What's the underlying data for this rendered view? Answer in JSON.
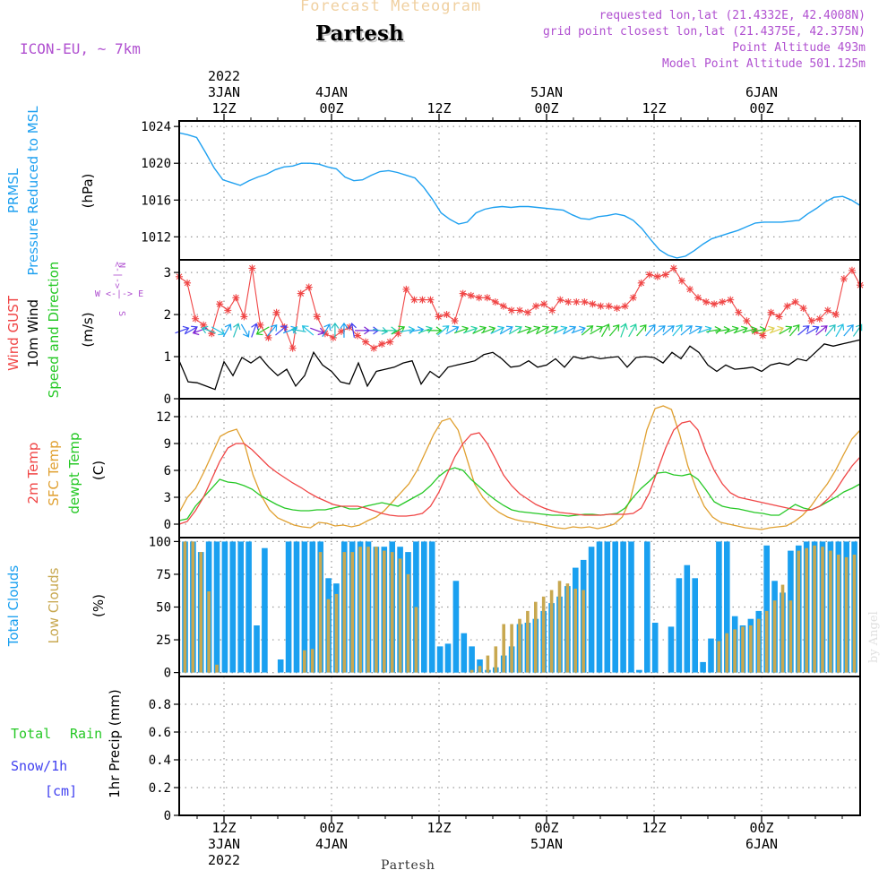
{
  "header": {
    "super_title": "Forecast Meteogram",
    "location": "Partesh",
    "model": "ICON-EU, ~ 7km",
    "requested": "requested lon,lat (21.4332E, 42.4008N)",
    "grid_point": "grid point closest lon,lat (21.4375E, 42.375N)",
    "point_altitude": "Point Altitude 493m",
    "model_altitude": "Model Point Altitude 501.125m",
    "footer_location": "Partesh",
    "watermark": "by Angel",
    "compass": {
      "n": "N",
      "s": "S",
      "w": "W",
      "e": "E",
      "arrow": "<-|->"
    }
  },
  "colors": {
    "pressure": "#1ea0f0",
    "gust": "#f04545",
    "wind": "#000000",
    "temp2m": "#f04545",
    "sfc": "#e0a030",
    "dewpt": "#25c825",
    "cloud_total": "#1aa0f0",
    "cloud_low": "#c8a850",
    "rain": "#25c825",
    "snow": "#4040f0",
    "header_purple": "#b050d0",
    "header_tan": "#f0d0a0"
  },
  "chart_data": {
    "type": "line",
    "time_axis": {
      "top_ticks": [
        {
          "hour": 12,
          "lines": [
            "2022",
            "3JAN",
            "12Z"
          ]
        },
        {
          "hour": 24,
          "lines": [
            "4JAN",
            "00Z"
          ]
        },
        {
          "hour": 36,
          "lines": [
            "12Z"
          ]
        },
        {
          "hour": 48,
          "lines": [
            "5JAN",
            "00Z"
          ]
        },
        {
          "hour": 60,
          "lines": [
            "12Z"
          ]
        },
        {
          "hour": 72,
          "lines": [
            "6JAN",
            "00Z"
          ]
        }
      ],
      "bottom_ticks": [
        {
          "hour": 12,
          "lines": [
            "12Z",
            "3JAN",
            "2022"
          ]
        },
        {
          "hour": 24,
          "lines": [
            "00Z",
            "4JAN"
          ]
        },
        {
          "hour": 36,
          "lines": [
            "12Z"
          ]
        },
        {
          "hour": 48,
          "lines": [
            "00Z",
            "5JAN"
          ]
        },
        {
          "hour": 60,
          "lines": [
            "12Z"
          ]
        },
        {
          "hour": 72,
          "lines": [
            "00Z",
            "6JAN"
          ]
        }
      ],
      "start_hour": 7,
      "end_hour": 83
    },
    "panels": [
      {
        "id": "pressure",
        "labels": [
          "PRMSL",
          "Pressure Reduced to MSL"
        ],
        "unit": "(hPa)",
        "yrange": [
          1009.5,
          1024.6
        ],
        "yticks": [
          1012,
          1016,
          1020,
          1024
        ],
        "series": [
          {
            "name": "PRMSL",
            "color": "#1ea0f0",
            "values": [
              1023.3,
              1023.1,
              1022.8,
              1021.2,
              1019.5,
              1018.2,
              1017.9,
              1017.6,
              1018.1,
              1018.5,
              1018.8,
              1019.3,
              1019.6,
              1019.7,
              1020.0,
              1020.0,
              1019.9,
              1019.6,
              1019.4,
              1018.5,
              1018.1,
              1018.2,
              1018.7,
              1019.1,
              1019.2,
              1019.0,
              1018.7,
              1018.4,
              1017.4,
              1016.1,
              1014.6,
              1013.9,
              1013.4,
              1013.6,
              1014.6,
              1015.0,
              1015.2,
              1015.3,
              1015.2,
              1015.3,
              1015.3,
              1015.2,
              1015.1,
              1015.0,
              1014.9,
              1014.4,
              1014.0,
              1013.9,
              1014.2,
              1014.3,
              1014.5,
              1014.3,
              1013.8,
              1012.9,
              1011.7,
              1010.6,
              1010.0,
              1009.7,
              1009.9,
              1010.5,
              1011.2,
              1011.8,
              1012.1,
              1012.4,
              1012.7,
              1013.1,
              1013.5,
              1013.6,
              1013.6,
              1013.6,
              1013.7,
              1013.8,
              1014.5,
              1015.1,
              1015.8,
              1016.3,
              1016.4,
              1016.0,
              1015.4
            ]
          }
        ]
      },
      {
        "id": "wind",
        "labels_red": "Wind GUST",
        "labels_black": "10m Wind",
        "labels_green": "Speed and Direction",
        "unit": "(m/s)",
        "yrange": [
          0,
          3.3
        ],
        "yticks": [
          0,
          1,
          2,
          3
        ],
        "gust": [
          2.9,
          2.75,
          1.9,
          1.75,
          1.55,
          2.25,
          2.1,
          2.4,
          1.95,
          3.1,
          1.75,
          1.45,
          2.05,
          1.7,
          1.2,
          2.5,
          2.65,
          1.95,
          1.55,
          1.45,
          1.6,
          1.7,
          1.5,
          1.35,
          1.2,
          1.3,
          1.35,
          1.55,
          2.6,
          2.35,
          2.35,
          2.35,
          1.95,
          2.0,
          1.85,
          2.5,
          2.45,
          2.4,
          2.4,
          2.3,
          2.2,
          2.1,
          2.1,
          2.05,
          2.2,
          2.25,
          2.1,
          2.35,
          2.3,
          2.3,
          2.3,
          2.25,
          2.2,
          2.2,
          2.15,
          2.2,
          2.4,
          2.75,
          2.95,
          2.9,
          2.95,
          3.1,
          2.8,
          2.6,
          2.4,
          2.3,
          2.25,
          2.3,
          2.35,
          2.05,
          1.85,
          1.6,
          1.5,
          2.05,
          1.95,
          2.2,
          2.3,
          2.15,
          1.85,
          1.9,
          2.1,
          2.0,
          2.85,
          3.05,
          2.7
        ],
        "wind": [
          0.9,
          0.4,
          0.38,
          0.3,
          0.22,
          0.88,
          0.55,
          0.98,
          0.85,
          1.0,
          0.75,
          0.55,
          0.7,
          0.3,
          0.55,
          1.1,
          0.8,
          0.65,
          0.4,
          0.35,
          0.85,
          0.3,
          0.65,
          0.7,
          0.75,
          0.85,
          0.9,
          0.35,
          0.65,
          0.5,
          0.75,
          0.8,
          0.85,
          0.9,
          1.05,
          1.1,
          0.95,
          0.75,
          0.78,
          0.9,
          0.75,
          0.8,
          0.95,
          0.75,
          1.0,
          0.95,
          1.0,
          0.95,
          0.98,
          1.0,
          0.75,
          0.98,
          1.0,
          0.98,
          0.85,
          1.1,
          0.95,
          1.25,
          1.1,
          0.8,
          0.65,
          0.8,
          0.7,
          0.72,
          0.75,
          0.65,
          0.8,
          0.85,
          0.8,
          0.95,
          0.9,
          1.1,
          1.3,
          1.25,
          1.3,
          1.35,
          1.4
        ],
        "arrow_dirs": [
          250,
          240,
          70,
          110,
          300,
          210,
          200,
          330,
          200,
          60,
          220,
          230,
          250,
          100,
          130,
          290,
          210,
          180,
          180,
          170,
          270,
          270,
          280,
          270,
          240,
          260,
          260,
          250,
          270,
          230,
          240,
          250,
          250,
          245,
          250,
          245,
          240,
          240,
          250,
          245,
          240,
          240,
          245,
          240,
          250,
          230,
          240,
          210,
          220,
          200,
          210,
          220,
          220,
          230,
          230,
          220,
          230,
          240,
          250,
          260,
          260,
          250,
          250,
          255,
          260,
          250,
          250,
          240,
          220,
          230,
          240,
          230,
          220,
          210,
          220,
          215
        ],
        "arrow_colors": [
          "#4040f0",
          "#4040f0",
          "#8020d0",
          "#25c0c0",
          "#20c0e0",
          "#1aa0f0",
          "#25c0c0",
          "#1aa0f0",
          "#4040f0",
          "#25c825",
          "#1aa0f0",
          "#4040f0",
          "#1aa0f0",
          "#25c0c0",
          "#20c0e0",
          "#8020d0",
          "#1aa0f0",
          "#25c0c0",
          "#1aa0f0",
          "#4040f0",
          "#8020d0",
          "#4040f0",
          "#25c0c0",
          "#20d0a0",
          "#25c825",
          "#20c0e0",
          "#1aa0f0",
          "#20d0a0",
          "#25c825",
          "#20c0e0",
          "#1aa0f0",
          "#25c825",
          "#20d0a0",
          "#25c825",
          "#25c825",
          "#20c0e0",
          "#1aa0f0",
          "#20d0a0",
          "#25c825",
          "#25c825",
          "#25c825",
          "#25c825",
          "#20c0e0",
          "#1aa0f0",
          "#1aa0f0",
          "#25c825",
          "#25c825",
          "#25c825",
          "#25c825",
          "#20d0a0",
          "#20d0a0",
          "#25c825",
          "#1aa0f0",
          "#1aa0f0",
          "#1aa0f0",
          "#20c0e0",
          "#1aa0f0",
          "#1aa0f0",
          "#20c0e0",
          "#25c825",
          "#25c825",
          "#25c825",
          "#25c825",
          "#25c825",
          "#25c825",
          "#e0d050",
          "#e0d050",
          "#25c825",
          "#25c825"
        ]
      },
      {
        "id": "temperature",
        "label_temp": "2m Temp",
        "label_sfc": "SFC Temp",
        "label_dew": "dewpt Temp",
        "unit": "(C)",
        "yrange": [
          -1.5,
          14
        ],
        "yticks": [
          0,
          3,
          6,
          9,
          12
        ],
        "series": [
          {
            "name": "2m Temp",
            "color": "#f04545",
            "values": [
              0.0,
              0.3,
              1.5,
              3.0,
              5.0,
              7.0,
              8.5,
              9.0,
              9.0,
              8.3,
              7.4,
              6.5,
              5.8,
              5.2,
              4.6,
              4.1,
              3.5,
              3.0,
              2.6,
              2.2,
              2.0,
              2.0,
              2.0,
              1.8,
              1.5,
              1.2,
              1.0,
              0.9,
              0.9,
              1.0,
              1.2,
              2.0,
              3.5,
              5.5,
              7.5,
              9.0,
              10.0,
              10.2,
              9.0,
              7.3,
              5.5,
              4.3,
              3.4,
              2.8,
              2.2,
              1.8,
              1.5,
              1.3,
              1.2,
              1.1,
              1.0,
              1.0,
              1.0,
              1.1,
              1.1,
              1.1,
              1.2,
              1.8,
              3.5,
              6.0,
              8.5,
              10.5,
              11.3,
              11.5,
              10.5,
              8.0,
              6.0,
              4.5,
              3.5,
              3.0,
              2.8,
              2.6,
              2.4,
              2.2,
              2.0,
              1.8,
              1.6,
              1.5,
              1.6,
              2.0,
              2.8,
              3.8,
              5.2,
              6.5,
              7.5
            ]
          },
          {
            "name": "SFC Temp",
            "color": "#e0a030",
            "values": [
              1.3,
              3.0,
              4.0,
              5.8,
              7.8,
              9.8,
              10.3,
              10.6,
              8.8,
              5.5,
              3.2,
              1.6,
              0.7,
              0.3,
              -0.1,
              -0.3,
              -0.4,
              0.2,
              0.1,
              -0.2,
              -0.1,
              -0.3,
              -0.1,
              0.4,
              0.8,
              1.5,
              2.5,
              3.5,
              4.5,
              6.0,
              8.0,
              10.0,
              11.5,
              11.8,
              10.5,
              7.5,
              4.5,
              3.0,
              2.0,
              1.3,
              0.8,
              0.5,
              0.3,
              0.2,
              0.0,
              -0.2,
              -0.4,
              -0.5,
              -0.3,
              -0.4,
              -0.3,
              -0.5,
              -0.3,
              0.0,
              0.8,
              2.8,
              6.5,
              10.5,
              12.9,
              13.2,
              12.8,
              10.0,
              6.5,
              4.0,
              2.0,
              0.8,
              0.2,
              0.0,
              -0.2,
              -0.4,
              -0.5,
              -0.6,
              -0.4,
              -0.3,
              -0.2,
              0.3,
              1.0,
              2.0,
              3.3,
              4.5,
              6.0,
              7.8,
              9.5,
              10.5
            ]
          },
          {
            "name": "dewpt Temp",
            "color": "#25c825",
            "values": [
              0.4,
              0.6,
              2.0,
              3.0,
              4.0,
              5.0,
              4.7,
              4.6,
              4.3,
              3.9,
              3.2,
              2.7,
              2.2,
              1.8,
              1.6,
              1.5,
              1.5,
              1.6,
              1.6,
              1.8,
              2.0,
              1.7,
              1.7,
              2.0,
              2.2,
              2.4,
              2.2,
              2.0,
              2.5,
              3.0,
              3.5,
              4.3,
              5.3,
              6.0,
              6.3,
              6.0,
              5.0,
              4.2,
              3.4,
              2.7,
              2.1,
              1.6,
              1.4,
              1.3,
              1.2,
              1.1,
              1.0,
              1.0,
              0.9,
              1.0,
              1.1,
              1.1,
              1.0,
              1.1,
              1.2,
              1.8,
              3.0,
              4.0,
              4.8,
              5.7,
              5.8,
              5.5,
              5.4,
              5.6,
              5.0,
              3.8,
              2.5,
              2.0,
              1.8,
              1.7,
              1.5,
              1.3,
              1.2,
              1.0,
              1.0,
              1.6,
              2.2,
              1.8,
              1.6,
              2.0,
              2.5,
              3.0,
              3.6,
              4.0,
              4.5
            ]
          }
        ]
      },
      {
        "id": "clouds",
        "label_total": "Total Clouds",
        "label_low": "Low Clouds",
        "unit": "(%)",
        "yrange": [
          -3,
          103
        ],
        "yticks": [
          0,
          25,
          50,
          75,
          100
        ],
        "total": [
          100,
          100,
          92,
          100,
          100,
          100,
          100,
          100,
          100,
          36,
          95,
          0,
          10,
          100,
          100,
          100,
          100,
          100,
          72,
          68,
          100,
          100,
          100,
          100,
          96,
          96,
          100,
          96,
          92,
          100,
          100,
          100,
          20,
          22,
          70,
          30,
          20,
          10,
          2,
          4,
          13,
          20,
          37,
          38,
          41,
          47,
          53,
          58,
          66,
          80,
          86,
          96,
          100,
          100,
          100,
          100,
          100,
          2,
          100,
          38,
          0,
          35,
          72,
          82,
          72,
          8,
          26,
          100,
          100,
          43,
          36,
          41,
          47,
          97,
          70,
          61,
          93,
          97,
          100,
          100,
          100,
          100,
          100,
          100,
          100
        ],
        "low": [
          100,
          100,
          92,
          62,
          6,
          0,
          0,
          0,
          0,
          0,
          0,
          0,
          0,
          0,
          0,
          17,
          18,
          92,
          56,
          60,
          92,
          92,
          96,
          96,
          96,
          93,
          92,
          87,
          75,
          50,
          0,
          0,
          0,
          0,
          0,
          0,
          2,
          5,
          13,
          20,
          37,
          37,
          41,
          47,
          54,
          58,
          63,
          70,
          68,
          64,
          63,
          0,
          0,
          0,
          0,
          0,
          0,
          0,
          0,
          0,
          0,
          0,
          0,
          0,
          0,
          0,
          0,
          24,
          30,
          33,
          35,
          36,
          41,
          47,
          55,
          67,
          55,
          93,
          95,
          97,
          96,
          93,
          90,
          88,
          90
        ]
      },
      {
        "id": "precip",
        "label_total": "Total",
        "label_rain": "Rain",
        "label_snow": "Snow/1h",
        "label_snow_unit": "[cm]",
        "unit": "1hr Precip (mm)",
        "yrange": [
          0,
          1.0
        ],
        "yticks": [
          0,
          0.2,
          0.4,
          0.6,
          0.8
        ],
        "tick_labels": [
          "0",
          "0.2",
          "0.4",
          "0.6",
          "0.8"
        ],
        "values": []
      }
    ]
  }
}
